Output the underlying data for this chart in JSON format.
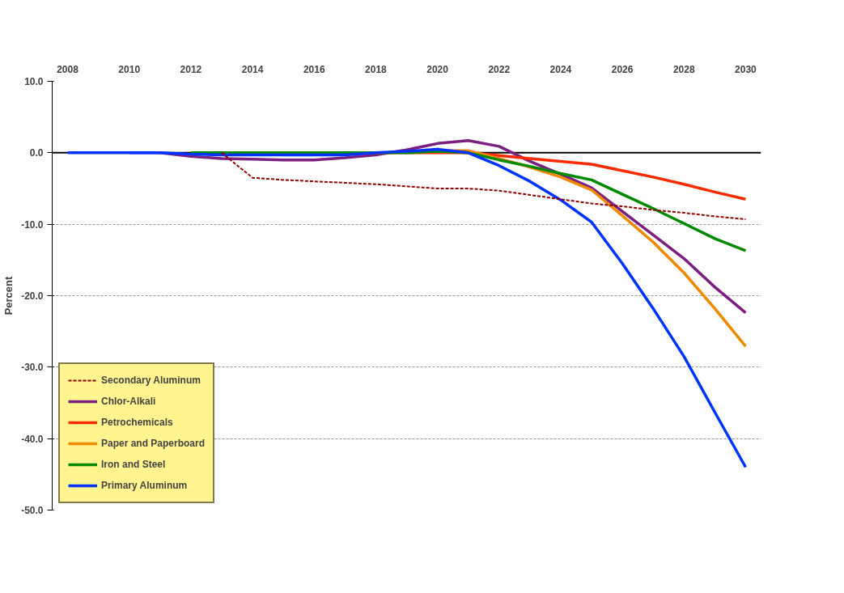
{
  "chart_data": {
    "type": "line",
    "ylabel": "Percent",
    "x": [
      2008,
      2009,
      2010,
      2011,
      2012,
      2013,
      2014,
      2015,
      2016,
      2017,
      2018,
      2019,
      2020,
      2021,
      2022,
      2023,
      2024,
      2025,
      2026,
      2027,
      2028,
      2029,
      2030
    ],
    "xlim": [
      2007.5,
      2030.5
    ],
    "xticks": [
      2008,
      2010,
      2012,
      2014,
      2016,
      2018,
      2020,
      2022,
      2024,
      2026,
      2028,
      2030
    ],
    "ylim": [
      -50,
      10
    ],
    "yticks": [
      {
        "value": 10,
        "label": "10.0"
      },
      {
        "value": 0,
        "label": "0.0"
      },
      {
        "value": -10,
        "label": "-10.0"
      },
      {
        "value": -20,
        "label": "-20.0"
      },
      {
        "value": -30,
        "label": "-30.0"
      },
      {
        "value": -40,
        "label": "-40.0"
      },
      {
        "value": -50,
        "label": "-50.0"
      }
    ],
    "grid": "y",
    "legend": "bottom left",
    "marker": "none",
    "ref_lines": [
      {
        "axis": "y",
        "value": 0,
        "label": null,
        "color": "#000000"
      }
    ],
    "series": [
      {
        "name": "Secondary Aluminum",
        "color": "#990000",
        "line_style": "dashed",
        "values": [
          null,
          null,
          null,
          null,
          null,
          0,
          -3.5,
          -3.8,
          -4.0,
          -4.2,
          -4.4,
          -4.7,
          -5.0,
          -5.0,
          -5.3,
          -5.9,
          -6.5,
          -7.1,
          -7.5,
          -8.0,
          -8.4,
          -8.9,
          -9.3
        ]
      },
      {
        "name": "Chlor-Alkali",
        "color": "#7b2080",
        "line_style": "solid",
        "values": [
          null,
          null,
          0,
          0,
          -0.5,
          -0.8,
          -0.9,
          -1.0,
          -1.0,
          -0.7,
          -0.3,
          0.4,
          1.3,
          1.7,
          0.9,
          -1.2,
          -3.0,
          -4.9,
          -8.2,
          -11.5,
          -14.8,
          -18.8,
          -22.4
        ]
      },
      {
        "name": "Petrochemicals",
        "color": "#ff2a00",
        "line_style": "solid",
        "values": [
          null,
          null,
          null,
          null,
          null,
          null,
          null,
          null,
          null,
          null,
          0,
          0,
          0,
          0,
          -0.4,
          -0.8,
          -1.2,
          -1.6,
          -2.5,
          -3.4,
          -4.4,
          -5.5,
          -6.5
        ]
      },
      {
        "name": "Paper and Paperboard",
        "color": "#f08a00",
        "line_style": "solid",
        "values": [
          null,
          null,
          null,
          null,
          null,
          null,
          null,
          null,
          null,
          null,
          null,
          null,
          0.3,
          0.3,
          -0.8,
          -2.0,
          -3.4,
          -5.2,
          -8.8,
          -12.5,
          -16.8,
          -21.8,
          -27.1
        ]
      },
      {
        "name": "Iron and Steel",
        "color": "#008a00",
        "line_style": "solid",
        "values": [
          null,
          null,
          null,
          null,
          0,
          0,
          0,
          0,
          0,
          0,
          0,
          0,
          0.2,
          0,
          -1.0,
          -1.9,
          -2.9,
          -3.8,
          -5.8,
          -7.8,
          -9.9,
          -12.0,
          -13.7
        ]
      },
      {
        "name": "Primary Aluminum",
        "color": "#0033ff",
        "line_style": "solid",
        "values": [
          0,
          0,
          0,
          0,
          -0.2,
          -0.3,
          -0.3,
          -0.3,
          -0.3,
          -0.3,
          0,
          0.2,
          0.5,
          0,
          -1.8,
          -4.0,
          -6.6,
          -9.7,
          -15.5,
          -21.8,
          -28.5,
          -36.3,
          -44.0
        ]
      }
    ]
  }
}
